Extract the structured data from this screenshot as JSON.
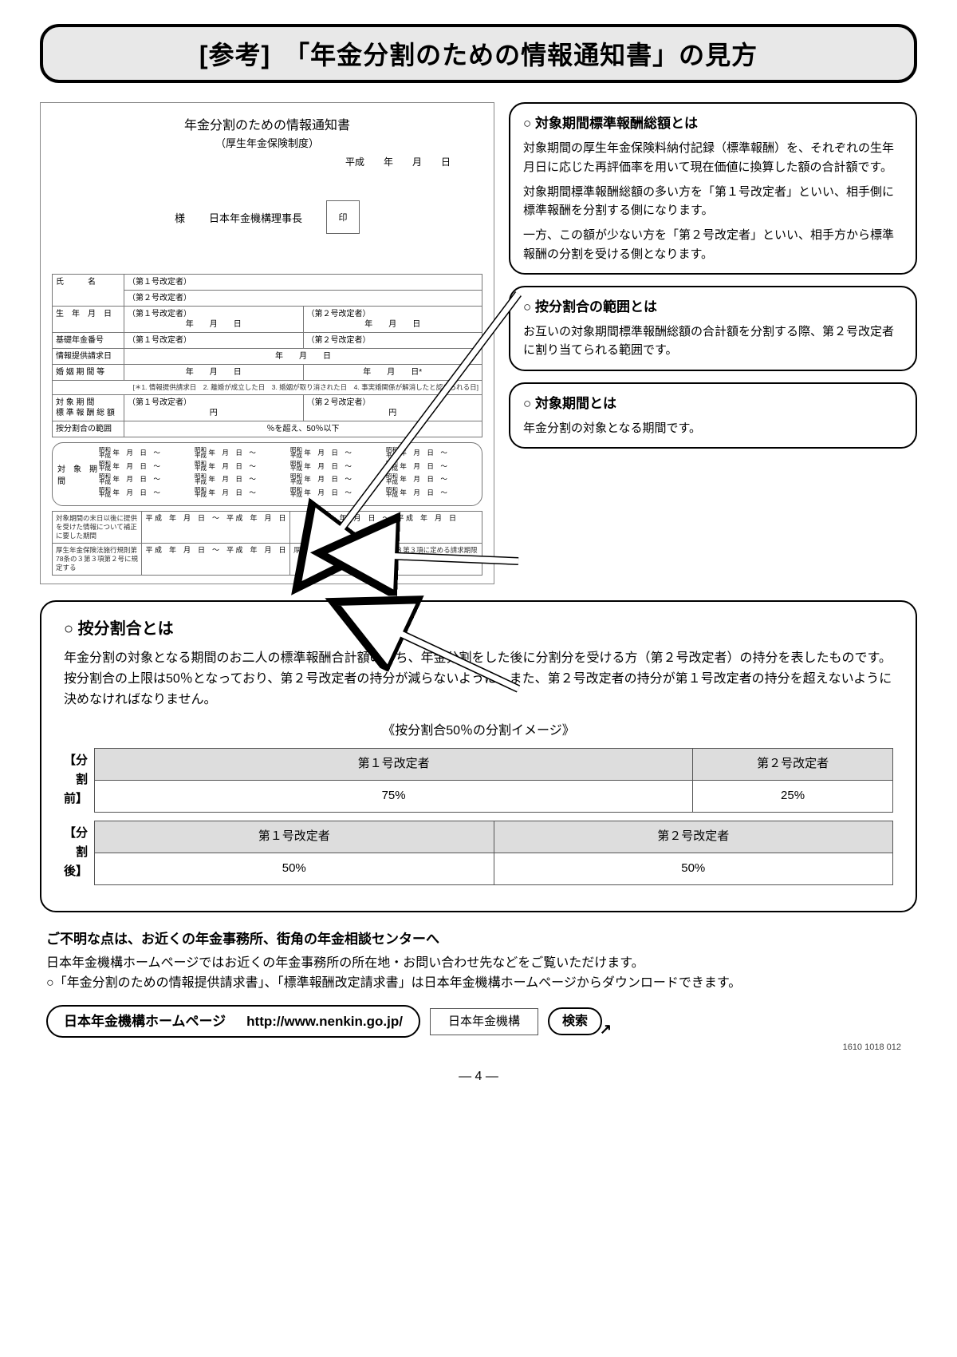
{
  "title": "[参考]　「年金分割のための情報通知書」の見方",
  "form": {
    "title": "年金分割のための情報通知書",
    "subtitle": "（厚生年金保険制度）",
    "date_prefix": "平成　　年　　月　　日",
    "sama": "様",
    "issuer": "日本年金機構理事長",
    "seal": "印",
    "rows": {
      "name_label": "氏　　　名",
      "name_r1": "（第１号改定者）",
      "name_r2": "（第２号改定者）",
      "dob_label": "生　年　月　日",
      "dob_l": "（第１号改定者）",
      "dob_r": "（第２号改定者）",
      "dob_format": "年　　月　　日",
      "kiso_label": "基礎年金番号",
      "kiso_l": "（第１号改定者）",
      "kiso_r": "（第２号改定者）",
      "req_label": "情報提供請求日",
      "req_val": "年　　月　　日",
      "marriage_label": "婚 姻 期 間 等",
      "marriage_l": "年　　月　　日",
      "marriage_r": "年　　月　　日*",
      "marriage_note": "[＊1. 情報提供請求日　2. 離婚が成立した日　3. 婚姻が取り消された日　4. 事実婚関係が解消したと認められる日]",
      "total_label": "対 象 期 間\n標 準 報 酬 総 額",
      "total_l": "（第１号改定者）",
      "total_r": "（第２号改定者）",
      "yen": "円",
      "ratio_label": "按分割合の範囲",
      "ratio_val": "％を超え、50％以下"
    },
    "period_block_label": "対　象　期　間",
    "period_era_unit": "昭和\n平成",
    "period_unit": "年　月　日　～",
    "late_label": "対象期間の末日以後に提供を受けた情報について補正に要した期間",
    "late_val": "平 成　年　月　日　～　平 成　年　月　日",
    "law_label": "厚生年金保険法施行規則第78条の３第３項第２号に規定する",
    "law_r": "厚生年金保険法施行規則第78条の３第３項に定める請求期限"
  },
  "box1": {
    "title": "対象期間標準報酬総額とは",
    "p1": "対象期間の厚生年金保険料納付記録（標準報酬）を、それぞれの生年月日に応じた再評価率を用いて現在価値に換算した額の合計額です。",
    "p2": "対象期間標準報酬総額の多い方を「第１号改定者」といい、相手側に標準報酬を分割する側になります。",
    "p3": "一方、この額が少ない方を「第２号改定者」といい、相手方から標準報酬の分割を受ける側となります。"
  },
  "box2": {
    "title": "按分割合の範囲とは",
    "p1": "お互いの対象期間標準報酬総額の合計額を分割する際、第２号改定者に割り当てられる範囲です。"
  },
  "box3": {
    "title": "対象期間とは",
    "p1": "年金分割の対象となる期間です。"
  },
  "mainbox": {
    "title": "按分割合とは",
    "p1": "年金分割の対象となる期間のお二人の標準報酬合計額のうち、年金分割をした後に分割分を受ける方（第２号改定者）の持分を表したものです。",
    "p2": "按分割合の上限は50％となっており、第２号改定者の持分が減らないように、また、第２号改定者の持分が第１号改定者の持分を超えないように決めなければなりません。",
    "split_caption": "《按分割合50％の分割イメージ》",
    "before_label": "【分割前】",
    "after_label": "【分割後】",
    "person1": "第１号改定者",
    "person2": "第２号改定者",
    "before_p1_pct": "75%",
    "before_p2_pct": "25%",
    "after_p1_pct": "50%",
    "after_p2_pct": "50%"
  },
  "footer": {
    "t1": "ご不明な点は、お近くの年金事務所、街角の年金相談センターへ",
    "p1": "日本年金機構ホームページではお近くの年金事務所の所在地・お問い合わせ先などをご覧いただけます。",
    "p2": "○「年金分割のための情報提供請求書」、「標準報酬改定請求書」は日本年金機構ホームページからダウンロードできます。",
    "hp_label": "日本年金機構ホームページ",
    "hp_url": "http://www.nenkin.go.jp/",
    "search_box": "日本年金機構",
    "search_btn": "検索",
    "code": "1610 1018 012",
    "page_num": "— 4 —"
  },
  "colors": {
    "bg": "#ffffff",
    "border": "#000000",
    "pale": "#e8e8e8",
    "grid": "#dddddd"
  }
}
